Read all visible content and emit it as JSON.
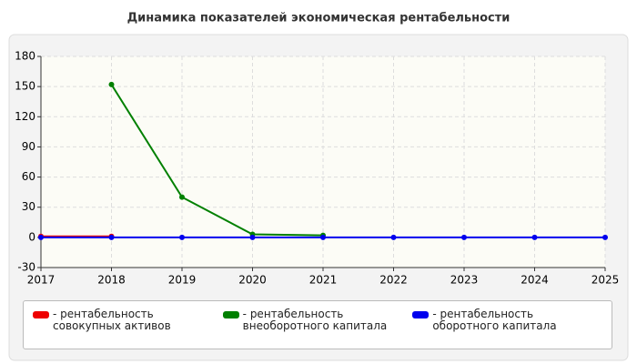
{
  "chart_data": {
    "type": "line",
    "title": "Динамика показателей экономическая рентабельности",
    "x": [
      2017,
      2018,
      2019,
      2020,
      2021,
      2022,
      2023,
      2024,
      2025
    ],
    "series": [
      {
        "name": "- рентабельность совокупных активов",
        "color": "#ee0000",
        "values": [
          1,
          1,
          null,
          null,
          null,
          null,
          null,
          null,
          null
        ]
      },
      {
        "name": "- рентабельность внеоборотного капитала",
        "color": "#008000",
        "values": [
          null,
          152,
          40,
          3,
          2,
          null,
          null,
          null,
          null
        ]
      },
      {
        "name": "- рентабельность оборотного капитала",
        "color": "#0000ee",
        "values": [
          0,
          0,
          0,
          0,
          0,
          0,
          0,
          0,
          0
        ]
      }
    ],
    "xlim": [
      2017,
      2025
    ],
    "xticks": [
      2017,
      2018,
      2019,
      2020,
      2021,
      2022,
      2023,
      2024,
      2025
    ],
    "ylim": [
      -30,
      180
    ],
    "yticks": [
      -30,
      0,
      30,
      60,
      90,
      120,
      150,
      180
    ],
    "grid": true
  }
}
